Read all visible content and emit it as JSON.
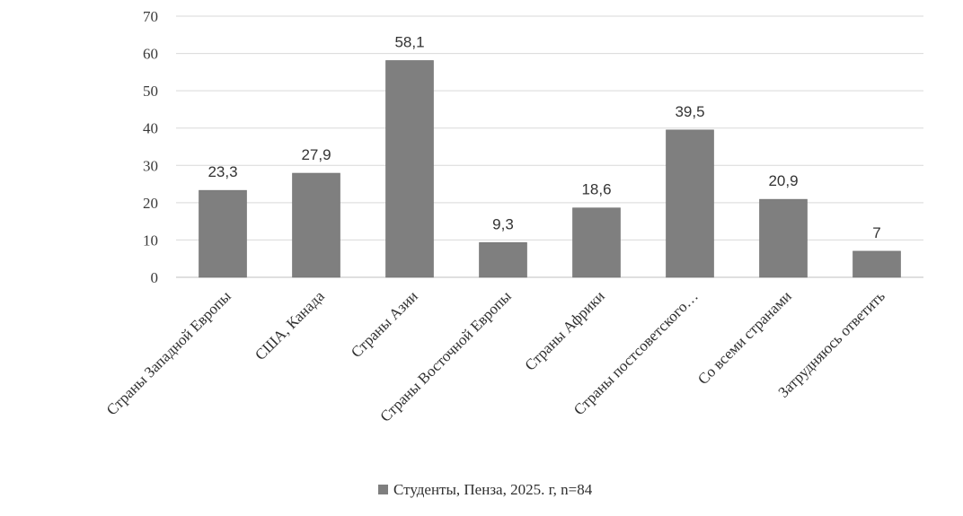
{
  "chart_data": {
    "type": "bar",
    "categories": [
      "Страны Западной Европы",
      "США, Канада",
      "Страны Азии",
      "Страны Восточной Европы",
      "Страны Африки",
      "Страны постсоветского…",
      "Со всеми странами",
      "Затрудняюсь ответить"
    ],
    "series": [
      {
        "name": "Студенты, Пенза, 2025. г, n=84",
        "values": [
          23.3,
          27.9,
          58.1,
          9.3,
          18.6,
          39.5,
          20.9,
          7
        ],
        "value_labels": [
          "23,3",
          "27,9",
          "58,1",
          "9,3",
          "18,6",
          "39,5",
          "20,9",
          "7"
        ]
      }
    ],
    "ylim": [
      0,
      70
    ],
    "yticks": [
      0,
      10,
      20,
      30,
      40,
      50,
      60,
      70
    ],
    "grid": true,
    "legend_position": "bottom",
    "colors": {
      "bar": "#7f7f7f",
      "grid": "#d9d9d9",
      "axis": "#bfbfbf"
    }
  }
}
